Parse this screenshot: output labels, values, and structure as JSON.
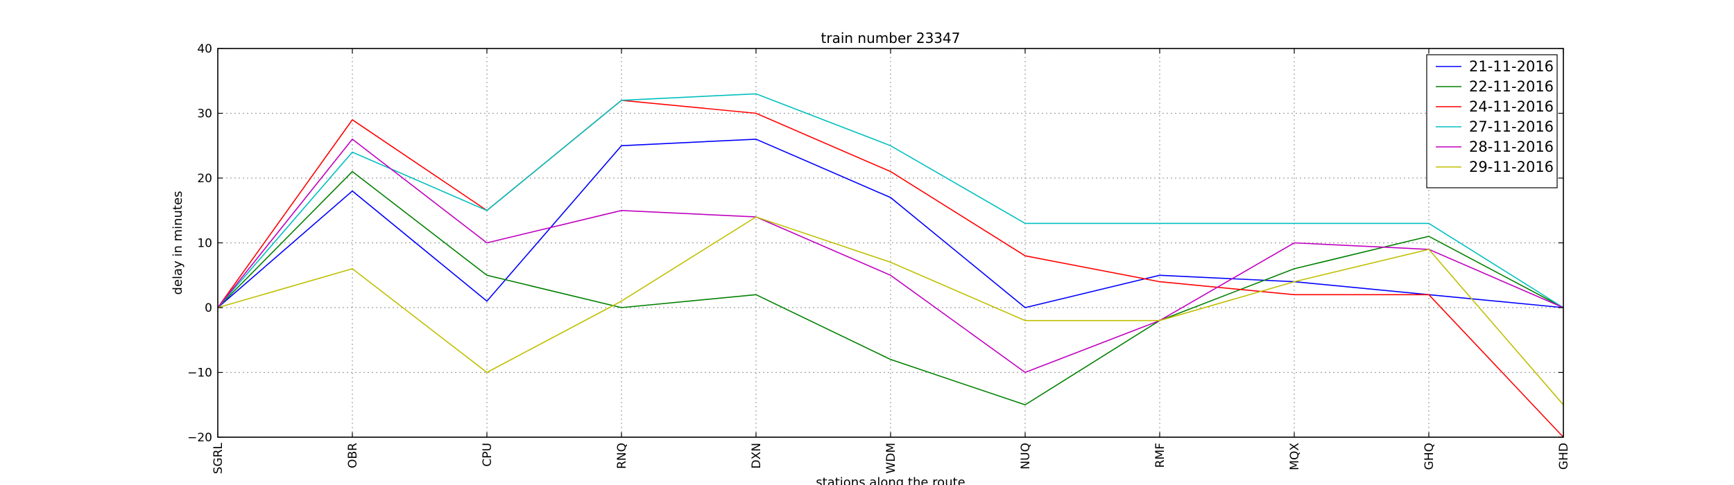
{
  "chart_data": {
    "type": "line",
    "title": "train number 23347",
    "xlabel": "stations along the route",
    "ylabel": "delay in minutes",
    "categories": [
      "SGRL",
      "OBR",
      "CPU",
      "RNQ",
      "DXN",
      "WDM",
      "NUQ",
      "RMF",
      "MQX",
      "GHQ",
      "GHD"
    ],
    "ylim": [
      -20,
      40
    ],
    "yticks": [
      -20,
      -10,
      0,
      10,
      20,
      30,
      40
    ],
    "ytick_labels": [
      "−20",
      "−10",
      "0",
      "10",
      "20",
      "30",
      "40"
    ],
    "grid": true,
    "legend_position": "top-right",
    "series": [
      {
        "name": "21-11-2016",
        "color": "#0000ff",
        "values": [
          0,
          18,
          1,
          25,
          26,
          17,
          0,
          5,
          4,
          2,
          0
        ]
      },
      {
        "name": "22-11-2016",
        "color": "#008000",
        "values": [
          0,
          21,
          5,
          0,
          2,
          -8,
          -15,
          -2,
          6,
          11,
          0
        ]
      },
      {
        "name": "24-11-2016",
        "color": "#ff0000",
        "values": [
          0,
          29,
          15,
          32,
          30,
          21,
          8,
          4,
          2,
          2,
          -20
        ]
      },
      {
        "name": "27-11-2016",
        "color": "#00bfbf",
        "values": [
          0,
          24,
          15,
          32,
          33,
          25,
          13,
          13,
          13,
          13,
          0
        ]
      },
      {
        "name": "28-11-2016",
        "color": "#bf00bf",
        "values": [
          0,
          26,
          10,
          15,
          14,
          5,
          -10,
          -2,
          10,
          9,
          0
        ]
      },
      {
        "name": "29-11-2016",
        "color": "#bfbf00",
        "values": [
          0,
          6,
          -10,
          1,
          14,
          7,
          -2,
          -2,
          4,
          9,
          -15
        ]
      }
    ]
  }
}
